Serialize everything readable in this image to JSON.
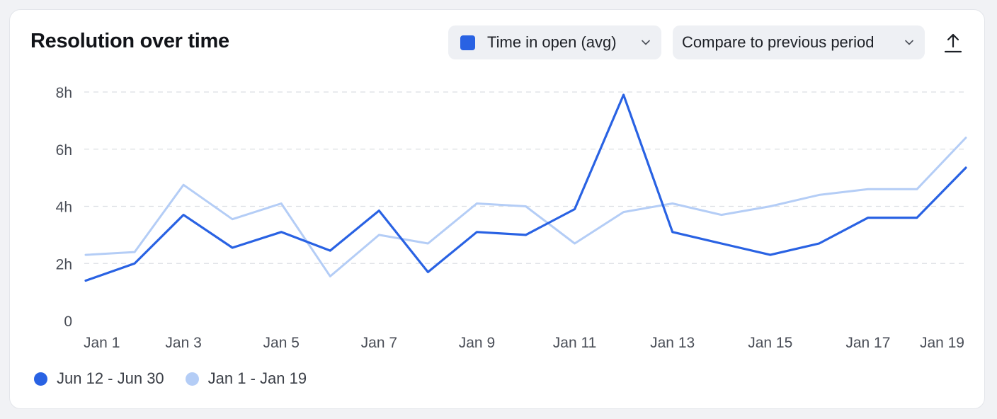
{
  "header": {
    "title": "Resolution over time",
    "metric_label": "Time in open (avg)",
    "compare_label": "Compare to previous period",
    "export_icon": "upload-icon"
  },
  "colors": {
    "current": "#2962e3",
    "previous": "#b4cdf6",
    "grid": "#dcdfe4",
    "axis_text": "#4a4e57"
  },
  "chart_data": {
    "type": "line",
    "title": "Resolution over time",
    "xlabel": "",
    "ylabel": "",
    "ylim": [
      0,
      8
    ],
    "grid": true,
    "legend_position": "bottom-left",
    "y_ticks": [
      "0",
      "2h",
      "4h",
      "6h",
      "8h"
    ],
    "x_ticks": [
      "Jan 1",
      "Jan 3",
      "Jan 5",
      "Jan 7",
      "Jan 9",
      "Jan 11",
      "Jan 13",
      "Jan 15",
      "Jan 17",
      "Jan 19"
    ],
    "categories": [
      "Jan 1",
      "Jan 2",
      "Jan 3",
      "Jan 4",
      "Jan 5",
      "Jan 6",
      "Jan 7",
      "Jan 8",
      "Jan 9",
      "Jan 10",
      "Jan 11",
      "Jan 12",
      "Jan 13",
      "Jan 14",
      "Jan 15",
      "Jan 16",
      "Jan 17",
      "Jan 18",
      "Jan 19"
    ],
    "series": [
      {
        "name": "Jun 12 - Jun 30",
        "values": [
          1.4,
          2.0,
          3.7,
          2.55,
          3.1,
          2.45,
          3.85,
          1.7,
          3.1,
          3.0,
          3.9,
          7.9,
          3.1,
          2.7,
          2.3,
          2.7,
          3.6,
          3.6,
          5.35
        ]
      },
      {
        "name": "Jan 1 - Jan 19",
        "values": [
          2.3,
          2.4,
          4.75,
          3.55,
          4.1,
          1.55,
          3.0,
          2.7,
          4.1,
          4.0,
          2.7,
          3.8,
          4.1,
          3.7,
          4.0,
          4.4,
          4.6,
          4.6,
          6.4
        ]
      }
    ]
  }
}
